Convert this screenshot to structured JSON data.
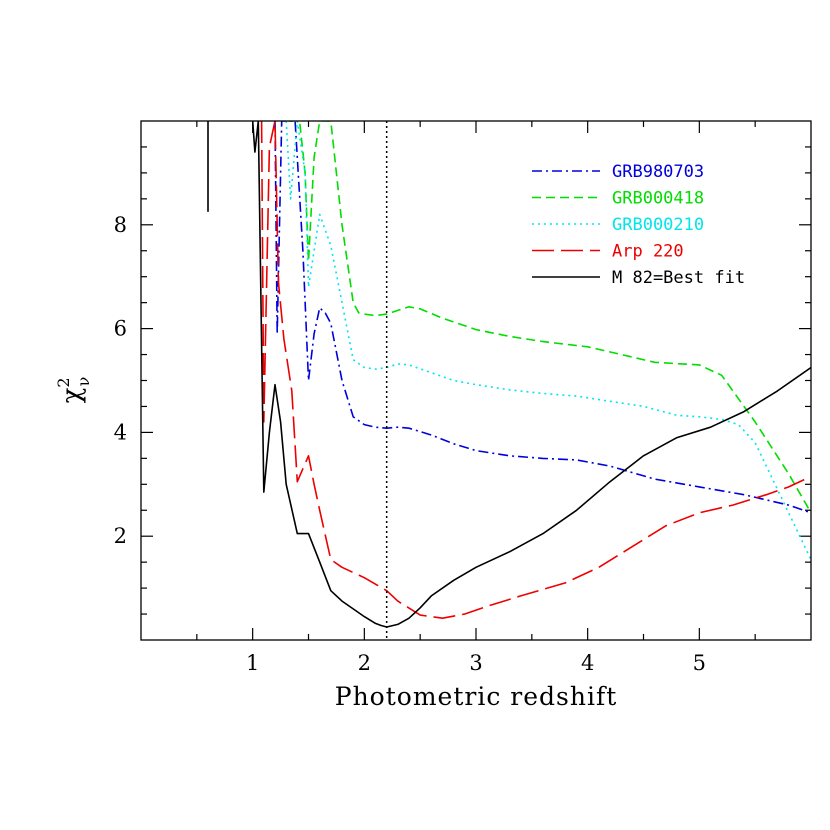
{
  "chart_data": {
    "type": "line",
    "xlabel": "Photometric redshift",
    "ylabel": {
      "symbol": "χ",
      "sup": "2",
      "sub": "ν"
    },
    "xlim": [
      0,
      6
    ],
    "ylim": [
      0,
      10
    ],
    "x_ticks": [
      1,
      2,
      3,
      4,
      5
    ],
    "y_ticks": [
      2,
      4,
      6,
      8
    ],
    "legend_position": "top-right",
    "reference_line": {
      "x": 2.2,
      "style": "dotted",
      "color": "#000000"
    },
    "series": [
      {
        "name": "GRB980703",
        "color": "#0000dd",
        "dash": "dash-dot",
        "x": [
          1.2,
          1.22,
          1.26,
          1.35,
          1.38,
          1.45,
          1.5,
          1.55,
          1.6,
          1.65,
          1.7,
          1.8,
          1.9,
          2.0,
          2.1,
          2.2,
          2.3,
          2.4,
          2.6,
          2.8,
          3.0,
          3.3,
          3.6,
          3.9,
          4.2,
          4.6,
          5.0,
          5.4,
          5.8,
          6.0
        ],
        "y": [
          10.0,
          5.9,
          10.0,
          10.0,
          10.0,
          7.5,
          5.0,
          5.9,
          6.4,
          6.3,
          6.1,
          5.0,
          4.3,
          4.15,
          4.1,
          4.08,
          4.1,
          4.08,
          3.95,
          3.78,
          3.65,
          3.55,
          3.5,
          3.47,
          3.35,
          3.1,
          2.95,
          2.8,
          2.6,
          2.45
        ]
      },
      {
        "name": "GRB000418",
        "color": "#00dd00",
        "dash": "dash",
        "x": [
          1.32,
          1.36,
          1.42,
          1.47,
          1.5,
          1.55,
          1.6,
          1.65,
          1.7,
          1.8,
          1.9,
          1.95,
          2.0,
          2.1,
          2.2,
          2.3,
          2.4,
          2.5,
          2.7,
          3.0,
          3.3,
          3.6,
          4.0,
          4.3,
          4.6,
          5.0,
          5.2,
          5.5,
          5.8,
          6.0
        ],
        "y": [
          10.0,
          10.0,
          10.0,
          9.0,
          7.3,
          9.3,
          10.0,
          10.0,
          10.0,
          8.0,
          6.5,
          6.3,
          6.28,
          6.25,
          6.28,
          6.35,
          6.42,
          6.38,
          6.2,
          5.98,
          5.85,
          5.75,
          5.65,
          5.5,
          5.35,
          5.3,
          5.1,
          4.2,
          3.2,
          2.45
        ]
      },
      {
        "name": "GRB000210",
        "color": "#00e5ee",
        "dash": "dot",
        "x": [
          1.3,
          1.34,
          1.4,
          1.47,
          1.5,
          1.55,
          1.6,
          1.7,
          1.8,
          1.9,
          2.0,
          2.1,
          2.2,
          2.3,
          2.4,
          2.6,
          2.8,
          3.0,
          3.3,
          3.6,
          3.9,
          4.2,
          4.5,
          4.8,
          5.0,
          5.2,
          5.35,
          5.5,
          5.7,
          6.0
        ],
        "y": [
          10.0,
          8.5,
          10.0,
          9.0,
          6.8,
          7.5,
          8.2,
          7.6,
          6.5,
          5.4,
          5.25,
          5.22,
          5.25,
          5.32,
          5.3,
          5.15,
          5.0,
          4.92,
          4.82,
          4.75,
          4.7,
          4.6,
          4.5,
          4.33,
          4.3,
          4.25,
          4.15,
          3.8,
          2.9,
          1.55
        ]
      },
      {
        "name": "Arp 220",
        "color": "#ee0000",
        "dash": "long-dash",
        "x": [
          1.08,
          1.1,
          1.15,
          1.2,
          1.23,
          1.28,
          1.35,
          1.4,
          1.45,
          1.5,
          1.55,
          1.6,
          1.7,
          1.8,
          2.0,
          2.2,
          2.3,
          2.5,
          2.7,
          2.9,
          3.1,
          3.4,
          3.8,
          4.1,
          4.4,
          4.7,
          5.0,
          5.3,
          5.6,
          5.8,
          6.0
        ],
        "y": [
          10.0,
          4.2,
          9.5,
          10.0,
          6.9,
          5.8,
          4.8,
          3.05,
          3.3,
          3.55,
          3.0,
          2.5,
          1.55,
          1.4,
          1.2,
          0.95,
          0.75,
          0.48,
          0.42,
          0.5,
          0.65,
          0.85,
          1.1,
          1.4,
          1.8,
          2.2,
          2.45,
          2.6,
          2.8,
          2.95,
          3.15
        ]
      },
      {
        "name": "M 82=Best fit",
        "color": "#000000",
        "dash": "solid",
        "x": [
          1.0,
          1.02,
          1.05,
          1.1,
          1.15,
          1.2,
          1.25,
          1.3,
          1.4,
          1.5,
          1.6,
          1.7,
          1.8,
          1.9,
          2.0,
          2.1,
          2.15,
          2.2,
          2.3,
          2.4,
          2.5,
          2.6,
          2.8,
          3.0,
          3.3,
          3.6,
          3.9,
          4.2,
          4.5,
          4.8,
          5.1,
          5.4,
          5.7,
          6.0
        ],
        "y": [
          10.0,
          9.4,
          10.0,
          2.85,
          4.0,
          4.92,
          4.2,
          3.0,
          2.05,
          2.05,
          1.5,
          0.95,
          0.75,
          0.6,
          0.45,
          0.32,
          0.28,
          0.25,
          0.3,
          0.42,
          0.62,
          0.85,
          1.15,
          1.4,
          1.7,
          2.05,
          2.5,
          3.05,
          3.55,
          3.9,
          4.1,
          4.4,
          4.8,
          5.25
        ]
      }
    ],
    "spikes": [
      {
        "series": "M 82=Best fit",
        "x": 0.6,
        "y_min": 8.25,
        "y_max": 10.0
      }
    ]
  }
}
